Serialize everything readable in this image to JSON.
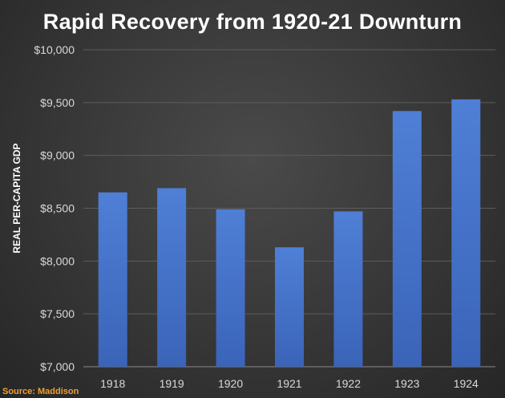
{
  "chart_data": {
    "type": "bar",
    "title": "Rapid Recovery from 1920-21 Downturn",
    "xlabel": "",
    "ylabel": "REAL PER-CAPITA GDP",
    "categories": [
      "1918",
      "1919",
      "1920",
      "1921",
      "1922",
      "1923",
      "1924"
    ],
    "values": [
      8650,
      8690,
      8490,
      8130,
      8470,
      9420,
      9530
    ],
    "ylim": [
      7000,
      10000
    ],
    "yticks": [
      7000,
      7500,
      8000,
      8500,
      9000,
      9500,
      10000
    ],
    "ytick_labels": [
      "$7,000",
      "$7,500",
      "$8,000",
      "$8,500",
      "$9,000",
      "$9,500",
      "$10,000"
    ],
    "grid": true,
    "bar_color": "#4472c4",
    "source": "Source: Maddison"
  }
}
